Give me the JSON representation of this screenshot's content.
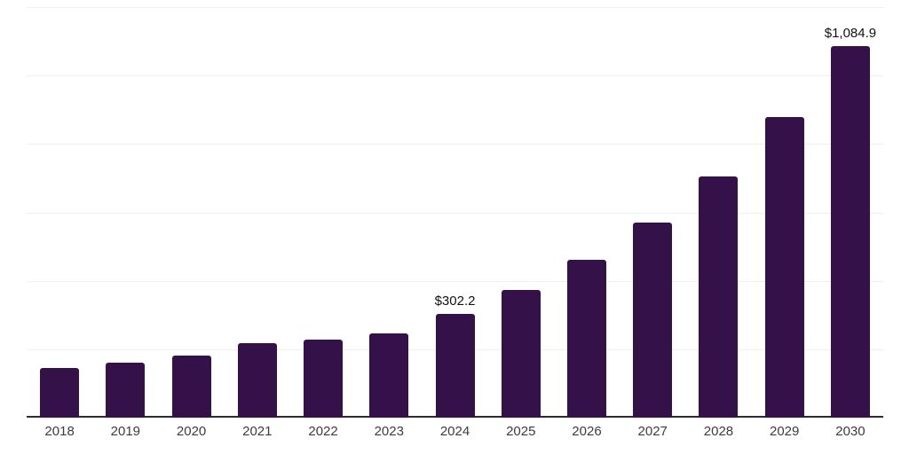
{
  "chart_data": {
    "type": "bar",
    "categories": [
      "2018",
      "2019",
      "2020",
      "2021",
      "2022",
      "2023",
      "2024",
      "2025",
      "2026",
      "2027",
      "2028",
      "2029",
      "2030"
    ],
    "values": [
      144,
      162,
      182,
      219,
      229,
      247,
      302.2,
      374,
      462,
      570,
      706,
      878,
      1084.9
    ],
    "shown_value_labels": [
      "",
      "",
      "",
      "",
      "",
      "",
      "$302.2",
      "",
      "",
      "",
      "",
      "",
      "$1,084.9"
    ],
    "title": "",
    "xlabel": "",
    "ylabel": "",
    "ylim": [
      0,
      1200
    ],
    "gridline_step": 200,
    "grid": "horizontal",
    "legend_position": "none"
  },
  "style": {
    "bar_color": "#341148",
    "gridline_color": "#efefef",
    "axis_line_color": "#2d2d2d",
    "tick_label_color": "#3c3c3c",
    "value_label_color": "#111111",
    "background_color": "#ffffff"
  }
}
